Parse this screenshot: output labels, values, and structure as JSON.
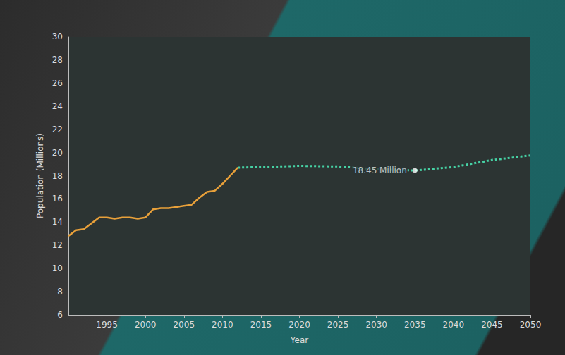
{
  "chart_data": {
    "type": "line",
    "x_label": "Year",
    "y_label": "Population (Millions)",
    "xlim": [
      1990,
      2050
    ],
    "xticks": [
      1995,
      2000,
      2005,
      2010,
      2015,
      2020,
      2025,
      2030,
      2035,
      2040,
      2045,
      2050
    ],
    "ylim": [
      6,
      30
    ],
    "yticks": [
      6,
      8,
      10,
      12,
      14,
      16,
      18,
      20,
      22,
      24,
      26,
      28,
      30
    ],
    "grid": false,
    "series": [
      {
        "color": "#e8a03a",
        "line_style": "solid",
        "x": [
          1990,
          1991,
          1992,
          1993,
          1994,
          1995,
          1996,
          1997,
          1998,
          1999,
          2000,
          2001,
          2002,
          2003,
          2004,
          2005,
          2006,
          2007,
          2008,
          2009,
          2010,
          2011,
          2012
        ],
        "values": [
          12.8,
          13.3,
          13.4,
          13.9,
          14.4,
          14.4,
          14.3,
          14.4,
          14.4,
          14.3,
          14.4,
          15.1,
          15.2,
          15.2,
          15.3,
          15.4,
          15.5,
          16.1,
          16.6,
          16.7,
          17.3,
          18.0,
          18.7
        ]
      },
      {
        "color": "#46d1a4",
        "line_style": "dotted",
        "x": [
          2012,
          2015,
          2020,
          2025,
          2030,
          2035,
          2040,
          2045,
          2050
        ],
        "values": [
          18.7,
          18.75,
          18.85,
          18.8,
          18.55,
          18.45,
          18.75,
          19.35,
          19.75
        ]
      }
    ],
    "annotations": [
      {
        "x": 2035,
        "y": 18.45,
        "text": "18.45 Million"
      }
    ]
  }
}
